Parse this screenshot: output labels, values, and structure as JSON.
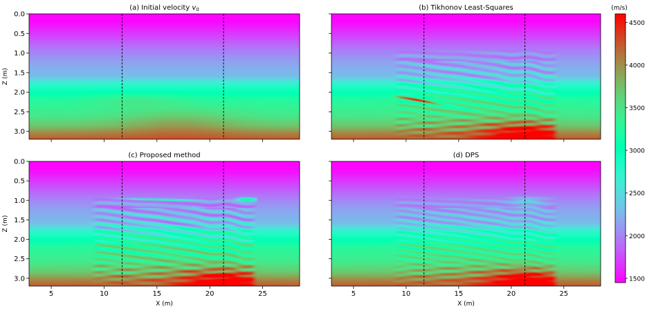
{
  "chart_data": {
    "type": "heatmap",
    "x_axis": {
      "label": "X (m)",
      "range": [
        2.9,
        28.5
      ],
      "ticks": [
        5,
        10,
        15,
        20,
        25
      ],
      "tick_labels": [
        "5",
        "10",
        "15",
        "20",
        "25"
      ]
    },
    "y_axis": {
      "label": "Z (m)",
      "range": [
        0.0,
        3.2
      ],
      "inverted": true,
      "ticks": [
        0.0,
        0.5,
        1.0,
        1.5,
        2.0,
        2.5,
        3.0
      ],
      "tick_labels": [
        "0.0",
        "0.5",
        "1.0",
        "1.5",
        "2.0",
        "2.5",
        "3.0"
      ]
    },
    "colorbar": {
      "unit": "(m/s)",
      "range": [
        1450,
        4600
      ],
      "ticks": [
        1500,
        2000,
        2500,
        3000,
        3500,
        4000,
        4500
      ],
      "tick_labels": [
        "1500",
        "2000",
        "2500",
        "3000",
        "3500",
        "4000",
        "4500"
      ],
      "colormap": "rainbow"
    },
    "dashed_lines_x": [
      11.7,
      21.3
    ],
    "update_region_x": [
      8.7,
      24.5
    ],
    "update_region_z": [
      0.9,
      3.2
    ],
    "panels": [
      {
        "id": "a",
        "title_prefix": "(a) Initial velocity ",
        "title_symbol": "v",
        "title_subscript": "0",
        "kind": "initial",
        "show_xlabel": false,
        "show_ylabel": true,
        "show_xticklabels": false,
        "show_yticklabels": true
      },
      {
        "id": "b",
        "title": "(b) Tikhonov Least-Squares",
        "kind": "tikhonov",
        "show_xlabel": false,
        "show_ylabel": false,
        "show_xticklabels": false,
        "show_yticklabels": false
      },
      {
        "id": "c",
        "title": "(c) Proposed method",
        "kind": "proposed",
        "show_xlabel": true,
        "show_ylabel": true,
        "show_xticklabels": true,
        "show_yticklabels": true
      },
      {
        "id": "d",
        "title": "(d) DPS",
        "kind": "dps",
        "show_xlabel": true,
        "show_ylabel": false,
        "show_xticklabels": true,
        "show_yticklabels": false
      }
    ]
  }
}
